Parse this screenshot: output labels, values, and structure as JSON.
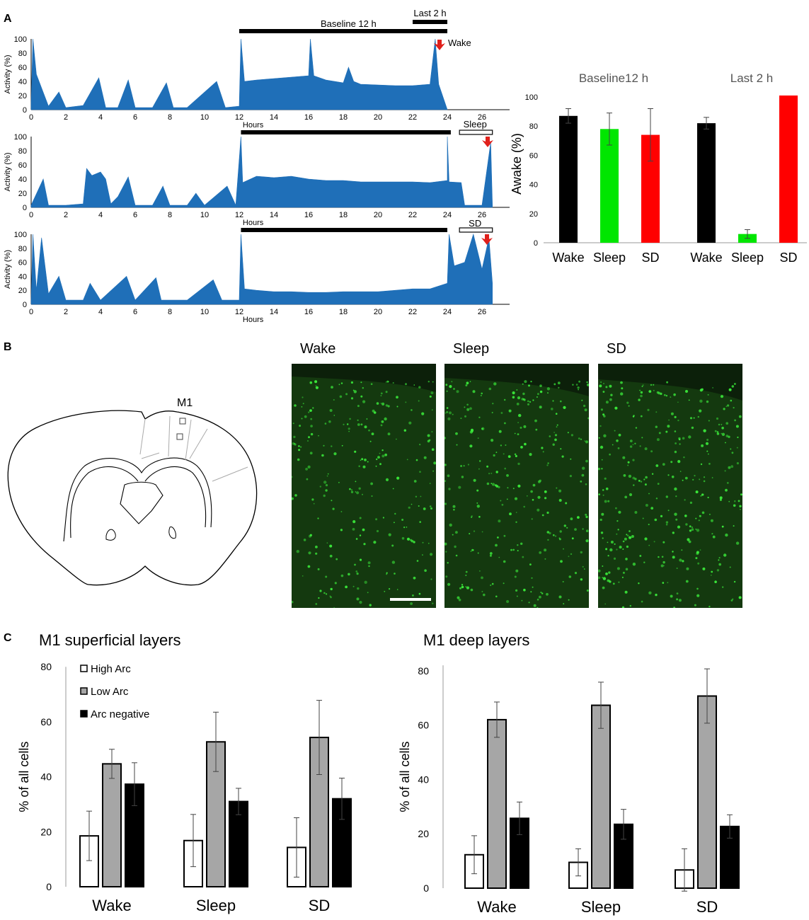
{
  "panel_letters": [
    "A",
    "B",
    "C"
  ],
  "colors": {
    "activity": "#1f6fb8",
    "wake": "#000000",
    "sleep": "#00e600",
    "sd": "#ff0000",
    "high_arc": "#ffffff",
    "low_arc": "#a6a6a6",
    "arc_negative": "#000000",
    "arrow": "#e0201b",
    "micro_bg": "#14390f",
    "micro_cells": "#3cf03c"
  },
  "activity_panel": {
    "ylabel": "Activity (%)",
    "xlabel": "Hours",
    "yticks": [
      0,
      20,
      40,
      60,
      80,
      100
    ],
    "xticks": [
      0,
      2,
      4,
      6,
      8,
      10,
      12,
      14,
      16,
      18,
      20,
      22,
      24,
      26
    ],
    "annotations": {
      "baseline": "Baseline 12 h",
      "last2h": "Last 2 h",
      "wake": "Wake",
      "sleep": "Sleep",
      "sd": "SD"
    }
  },
  "brain_panel": {
    "region_label": "M1",
    "image_labels": [
      "Wake",
      "Sleep",
      "SD"
    ]
  },
  "layers_panel": {
    "superficial_title": "M1 superficial layers",
    "deep_title": "M1 deep layers",
    "ylabel": "% of all cells",
    "legend": [
      "High Arc",
      "Low Arc",
      "Arc negative"
    ]
  },
  "chart_data": [
    {
      "type": "area",
      "id": "activity-wake",
      "xlabel": "Hours",
      "ylabel": "Activity (%)",
      "xlim": [
        0,
        28
      ],
      "ylim": [
        0,
        100
      ],
      "series": [
        {
          "name": "Wake",
          "points": [
            [
              0,
              10
            ],
            [
              0.1,
              100
            ],
            [
              0.3,
              50
            ],
            [
              1,
              5
            ],
            [
              1.6,
              25
            ],
            [
              2,
              3
            ],
            [
              3,
              6
            ],
            [
              3.9,
              45
            ],
            [
              4.3,
              3
            ],
            [
              5,
              3
            ],
            [
              5.6,
              42
            ],
            [
              6,
              3
            ],
            [
              7,
              3
            ],
            [
              7.8,
              38
            ],
            [
              8.2,
              3
            ],
            [
              9,
              3
            ],
            [
              10.7,
              40
            ],
            [
              11.2,
              3
            ],
            [
              12,
              5
            ],
            [
              12.1,
              100
            ],
            [
              12.3,
              40
            ],
            [
              13,
              42
            ],
            [
              14,
              44
            ],
            [
              15,
              46
            ],
            [
              16,
              48
            ],
            [
              16.1,
              100
            ],
            [
              16.3,
              48
            ],
            [
              17,
              42
            ],
            [
              18,
              38
            ],
            [
              18.3,
              60
            ],
            [
              18.6,
              40
            ],
            [
              19,
              36
            ],
            [
              20,
              35
            ],
            [
              21,
              34
            ],
            [
              22,
              34
            ],
            [
              23,
              36
            ],
            [
              23.3,
              100
            ],
            [
              23.5,
              36
            ],
            [
              24,
              0
            ]
          ]
        }
      ]
    },
    {
      "type": "area",
      "id": "activity-sleep",
      "xlabel": "Hours",
      "ylabel": "Activity (%)",
      "xlim": [
        0,
        28
      ],
      "ylim": [
        0,
        100
      ],
      "series": [
        {
          "name": "Sleep",
          "points": [
            [
              0,
              3
            ],
            [
              0.7,
              40
            ],
            [
              1,
              3
            ],
            [
              2,
              3
            ],
            [
              3,
              5
            ],
            [
              3.2,
              55
            ],
            [
              3.5,
              45
            ],
            [
              4,
              50
            ],
            [
              4.3,
              40
            ],
            [
              4.6,
              5
            ],
            [
              5,
              15
            ],
            [
              5.6,
              43
            ],
            [
              6,
              3
            ],
            [
              7,
              3
            ],
            [
              7.6,
              30
            ],
            [
              8,
              3
            ],
            [
              9,
              3
            ],
            [
              9.5,
              20
            ],
            [
              10,
              3
            ],
            [
              11.3,
              30
            ],
            [
              11.8,
              3
            ],
            [
              12.1,
              100
            ],
            [
              12.2,
              35
            ],
            [
              13,
              44
            ],
            [
              14,
              42
            ],
            [
              15,
              44
            ],
            [
              16,
              40
            ],
            [
              17,
              38
            ],
            [
              18,
              38
            ],
            [
              19,
              36
            ],
            [
              20,
              36
            ],
            [
              21,
              36
            ],
            [
              22,
              36
            ],
            [
              23,
              35
            ],
            [
              24,
              38
            ],
            [
              24,
              100
            ],
            [
              24.1,
              36
            ],
            [
              24.8,
              35
            ],
            [
              25,
              3
            ],
            [
              26,
              3
            ],
            [
              26.5,
              92
            ],
            [
              26.6,
              3
            ]
          ]
        }
      ]
    },
    {
      "type": "area",
      "id": "activity-sd",
      "xlabel": "Hours",
      "ylabel": "Activity (%)",
      "xlim": [
        0,
        28
      ],
      "ylim": [
        0,
        100
      ],
      "series": [
        {
          "name": "SD",
          "points": [
            [
              0,
              6
            ],
            [
              0.1,
              100
            ],
            [
              0.3,
              20
            ],
            [
              0.6,
              95
            ],
            [
              1,
              15
            ],
            [
              1.6,
              40
            ],
            [
              2,
              6
            ],
            [
              3,
              6
            ],
            [
              3.4,
              30
            ],
            [
              4,
              6
            ],
            [
              5.5,
              40
            ],
            [
              6,
              6
            ],
            [
              7.2,
              38
            ],
            [
              7.5,
              6
            ],
            [
              9,
              6
            ],
            [
              10.5,
              35
            ],
            [
              11,
              6
            ],
            [
              12,
              6
            ],
            [
              12.1,
              100
            ],
            [
              12.3,
              22
            ],
            [
              13,
              20
            ],
            [
              14,
              18
            ],
            [
              15,
              18
            ],
            [
              16,
              17
            ],
            [
              17,
              17
            ],
            [
              18,
              18
            ],
            [
              19,
              18
            ],
            [
              20,
              18
            ],
            [
              21,
              20
            ],
            [
              22,
              22
            ],
            [
              23,
              22
            ],
            [
              24,
              30
            ],
            [
              24.1,
              100
            ],
            [
              24.4,
              55
            ],
            [
              25,
              60
            ],
            [
              25.5,
              100
            ],
            [
              26,
              50
            ],
            [
              26.4,
              95
            ],
            [
              26.6,
              30
            ]
          ]
        }
      ]
    },
    {
      "type": "bar",
      "id": "awake-percent",
      "ylabel": "Awake (%)",
      "ylim": [
        0,
        110
      ],
      "yticks": [
        0,
        20,
        40,
        60,
        80,
        100
      ],
      "groups": [
        {
          "title": "Baseline12 h",
          "categories": [
            "Wake",
            "Sleep",
            "SD"
          ],
          "values": [
            87,
            78,
            74
          ],
          "errors": [
            5,
            11,
            18
          ]
        },
        {
          "title": "Last 2 h",
          "categories": [
            "Wake",
            "Sleep",
            "SD"
          ],
          "values": [
            82,
            6,
            101
          ],
          "errors": [
            4,
            3,
            0
          ]
        }
      ]
    },
    {
      "type": "bar",
      "id": "superficial-layers",
      "title": "M1 superficial layers",
      "ylabel": "% of all cells",
      "ylim": [
        0,
        80
      ],
      "yticks": [
        0,
        20,
        40,
        60,
        80
      ],
      "categories": [
        "Wake",
        "Sleep",
        "SD"
      ],
      "series": [
        {
          "name": "High Arc",
          "values": [
            18.5,
            16.8,
            14.3
          ],
          "errors": [
            9,
            9.5,
            10.8
          ]
        },
        {
          "name": "Low Arc",
          "values": [
            44.7,
            52.7,
            54.3
          ],
          "errors": [
            5.3,
            10.8,
            13.5
          ]
        },
        {
          "name": "Arc negative",
          "values": [
            37.3,
            31,
            32
          ],
          "errors": [
            7.8,
            4.8,
            7.5
          ]
        }
      ]
    },
    {
      "type": "bar",
      "id": "deep-layers",
      "title": "M1 deep layers",
      "ylabel": "% of all cells",
      "ylim": [
        0,
        90
      ],
      "yticks": [
        0,
        20,
        40,
        60,
        80
      ],
      "categories": [
        "Wake",
        "Sleep",
        "SD"
      ],
      "series": [
        {
          "name": "High Arc",
          "values": [
            12.3,
            9.5,
            6.7
          ],
          "errors": [
            7,
            5,
            7.8
          ]
        },
        {
          "name": "Low Arc",
          "values": [
            62,
            67.3,
            70.7
          ],
          "errors": [
            6.5,
            8.5,
            10
          ]
        },
        {
          "name": "Arc negative",
          "values": [
            25.7,
            23.5,
            22.7
          ],
          "errors": [
            6,
            5.5,
            4.3
          ]
        }
      ]
    }
  ]
}
